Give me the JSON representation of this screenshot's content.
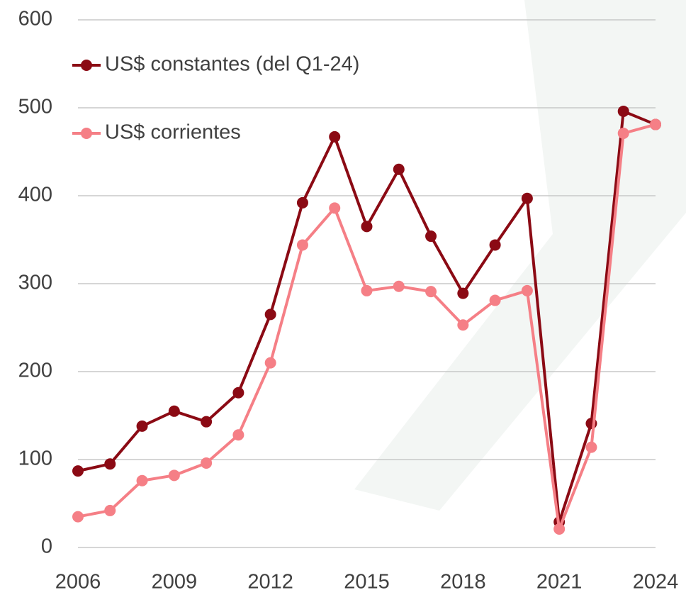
{
  "chart_data": {
    "type": "line",
    "x": [
      2006,
      2007,
      2008,
      2009,
      2010,
      2011,
      2012,
      2013,
      2014,
      2015,
      2016,
      2017,
      2018,
      2019,
      2020,
      2021,
      2022,
      2023,
      2024
    ],
    "series": [
      {
        "name": "US$ constantes (del Q1-24)",
        "color": "#8b0a14",
        "values": [
          87,
          95,
          138,
          155,
          143,
          176,
          265,
          392,
          467,
          365,
          430,
          354,
          289,
          344,
          397,
          29,
          141,
          496,
          481
        ]
      },
      {
        "name": "US$ corrientes",
        "color": "#f57f86",
        "values": [
          35,
          42,
          76,
          82,
          96,
          128,
          210,
          344,
          386,
          292,
          297,
          291,
          253,
          281,
          292,
          21,
          114,
          471,
          481
        ]
      }
    ],
    "xlim": [
      2006,
      2024
    ],
    "xticks": [
      2006,
      2009,
      2012,
      2015,
      2018,
      2021,
      2024
    ],
    "ylim": [
      0,
      600
    ],
    "yticks": [
      0,
      100,
      200,
      300,
      400,
      500,
      600
    ],
    "grid": true,
    "legend": "upper left"
  }
}
